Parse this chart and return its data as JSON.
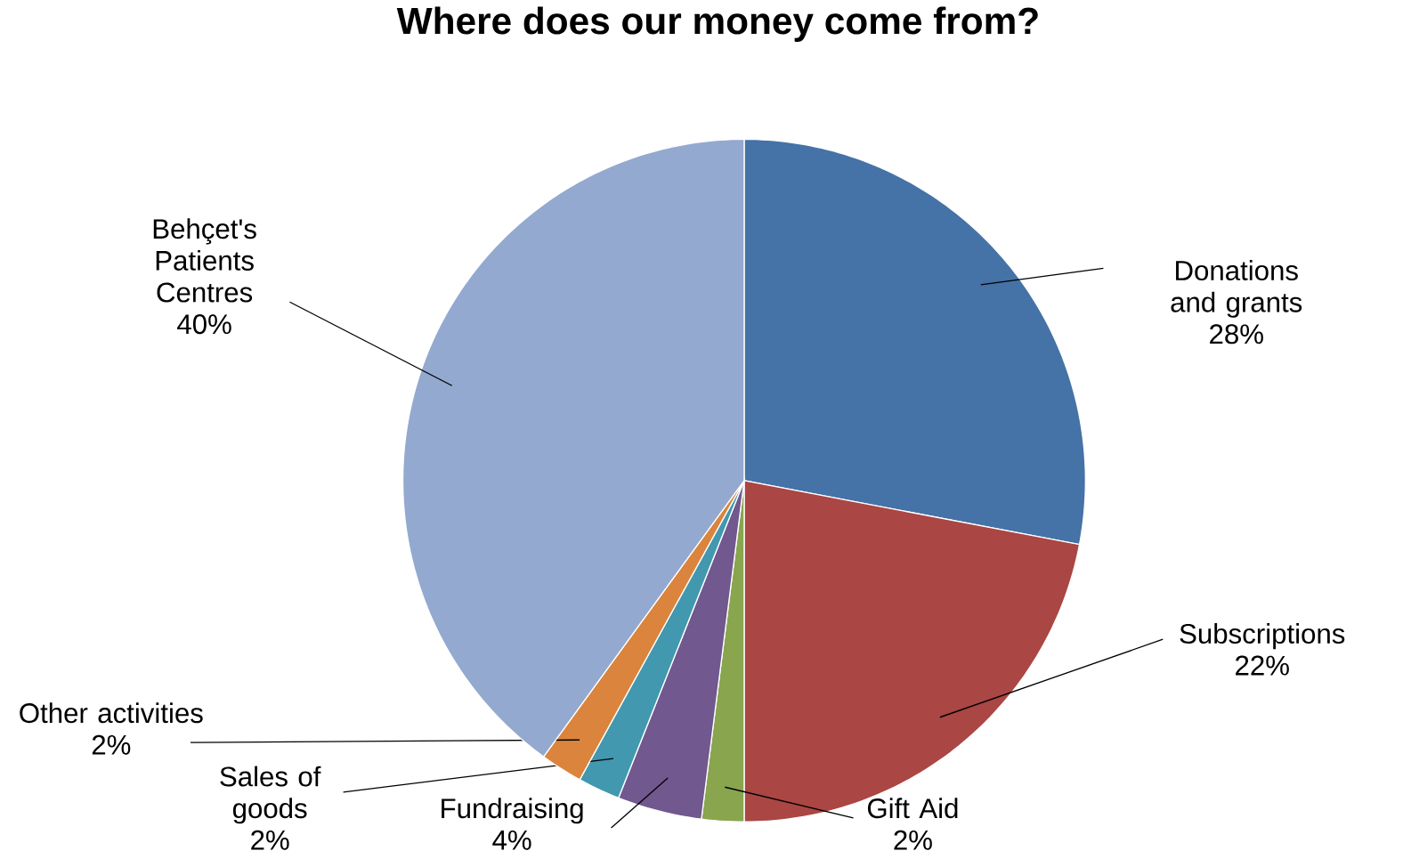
{
  "chart_data": {
    "type": "pie",
    "title": "Where does our money come from?",
    "categories": [
      "Donations and grants",
      "Subscriptions",
      "Gift Aid",
      "Fundraising",
      "Sales of goods",
      "Other activities",
      "Behçet's Patients Centres"
    ],
    "values": [
      28,
      22,
      2,
      4,
      2,
      2,
      40
    ],
    "value_labels": [
      "28%",
      "22%",
      "2%",
      "4%",
      "2%",
      "2%",
      "40%"
    ],
    "colors": [
      "#4572a7",
      "#aa4643",
      "#89a54e",
      "#71588f",
      "#4198af",
      "#db843d",
      "#93a9cf"
    ]
  }
}
